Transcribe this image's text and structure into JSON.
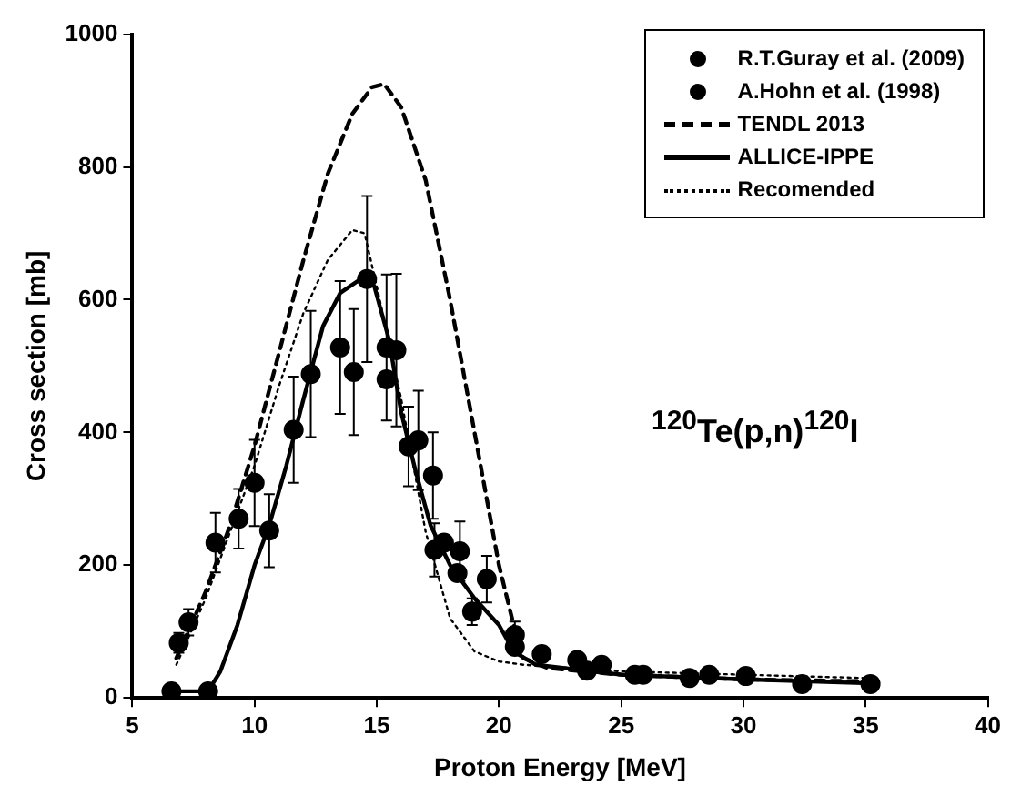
{
  "chart_data": {
    "type": "scatter",
    "xlabel": "Proton Energy [MeV]",
    "ylabel": "Cross section [mb]",
    "xlim": [
      5,
      40
    ],
    "ylim": [
      0,
      1000
    ],
    "xticks": [
      5,
      10,
      15,
      20,
      25,
      30,
      35,
      40
    ],
    "yticks": [
      0,
      200,
      400,
      600,
      800,
      1000
    ],
    "grid": false,
    "legend": "top right",
    "annotations": [
      "$^{120}$Te(p,n)$^{120}$I"
    ],
    "series": [
      {
        "name": "R.T.Guray et al. (2009)",
        "marker": "circle",
        "color": "#000000",
        "x": [
          6.9,
          7.3,
          8.4,
          9.35,
          10.0,
          10.6,
          11.6,
          12.3,
          13.5,
          14.06,
          14.6,
          15.4,
          15.4,
          15.8,
          16.3,
          16.7,
          17.3,
          17.36,
          17.75,
          18.4,
          18.3,
          18.9,
          19.5,
          20.65,
          20.65
        ],
        "values": [
          83,
          114,
          234,
          270,
          324,
          252,
          404,
          488,
          528,
          491,
          631,
          528,
          480,
          524,
          379,
          388,
          335,
          223,
          234,
          221,
          188,
          130,
          179,
          95,
          77
        ],
        "errors": [
          15,
          20,
          45,
          45,
          65,
          55,
          80,
          95,
          100,
          95,
          125,
          110,
          null,
          115,
          60,
          75,
          65,
          40,
          null,
          45,
          null,
          20,
          35,
          20,
          null
        ]
      },
      {
        "name": "A.Hohn et al. (1998)",
        "marker": "circle",
        "color": "#000000",
        "x": [
          6.6,
          8.1,
          21.75,
          23.2,
          23.6,
          24.2,
          25.56,
          25.9,
          27.8,
          28.6,
          30.1,
          32.4,
          35.2
        ],
        "values": [
          10,
          10,
          66,
          57,
          41,
          50,
          35,
          35,
          30,
          35,
          33,
          21,
          21
        ]
      },
      {
        "name": "TENDL 2013",
        "type": "line",
        "marker": "none",
        "line_style": "dashed",
        "color": "#000000",
        "x": [
          6.8,
          8,
          9,
          10,
          11,
          12,
          13,
          14,
          14.8,
          15.3,
          16,
          17,
          18,
          19,
          20,
          20.6,
          21,
          22,
          25,
          30,
          35
        ],
        "values": [
          60,
          160,
          260,
          380,
          520,
          660,
          790,
          880,
          920,
          925,
          890,
          780,
          600,
          400,
          200,
          110,
          60,
          45,
          35,
          28,
          25
        ]
      },
      {
        "name": "ALLICE-IPPE",
        "type": "line",
        "marker": "none",
        "line_style": "solid",
        "color": "#000000",
        "x": [
          6.6,
          8.1,
          8.6,
          9.3,
          10,
          10.6,
          11.3,
          12,
          12.8,
          13.5,
          14.3,
          14.9,
          15.5,
          16,
          16.6,
          17.2,
          18,
          19,
          20,
          20.6,
          21.5,
          25,
          30,
          35.2
        ],
        "values": [
          10,
          10,
          40,
          110,
          200,
          260,
          350,
          450,
          560,
          610,
          630,
          620,
          540,
          430,
          340,
          260,
          200,
          150,
          110,
          70,
          50,
          35,
          28,
          22
        ]
      },
      {
        "name": "Recomended",
        "type": "line",
        "marker": "none",
        "line_style": "dotted",
        "color": "#000000",
        "x": [
          6.8,
          8,
          9,
          10,
          11,
          12,
          13,
          14,
          14.5,
          15,
          16,
          17,
          18,
          19,
          20,
          21,
          25,
          35
        ],
        "values": [
          50,
          150,
          250,
          350,
          470,
          580,
          660,
          705,
          700,
          620,
          450,
          250,
          120,
          70,
          55,
          50,
          40,
          30
        ]
      }
    ]
  }
}
